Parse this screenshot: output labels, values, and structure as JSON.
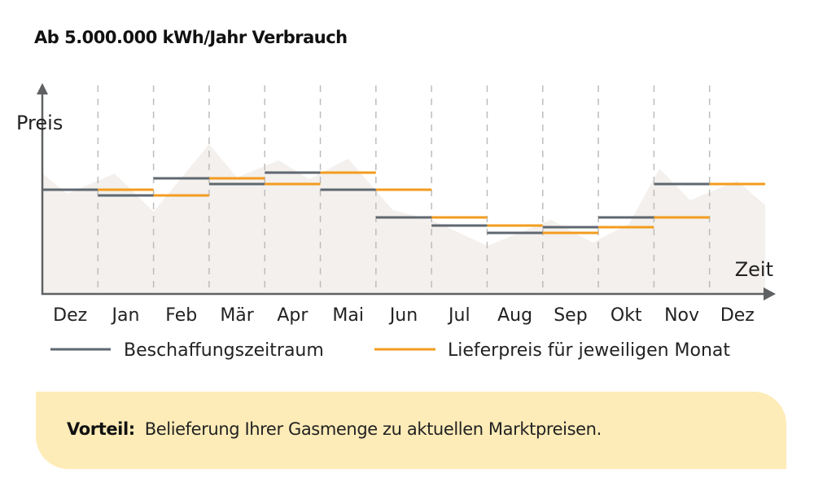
{
  "title": "Ab 5.000.000 kWh/Jahr Verbrauch",
  "chart_data": {
    "type": "line",
    "subtype": "step",
    "title": "Ab 5.000.000 kWh/Jahr Verbrauch",
    "ylabel": "Preis",
    "xlabel": "Zeit",
    "categories": [
      "Dez",
      "Jan",
      "Feb",
      "Mär",
      "Apr",
      "Mai",
      "Jun",
      "Jul",
      "Aug",
      "Sep",
      "Okt",
      "Nov",
      "Dez"
    ],
    "ylim": [
      0,
      95
    ],
    "grid": "vertical dashed",
    "legend_position": "bottom",
    "series": [
      {
        "name": "Beschaffungszeitraum",
        "color": "#5f6870",
        "values": [
          63.5,
          60,
          70.5,
          67,
          74,
          63.5,
          46.5,
          41.5,
          37,
          40.5,
          46.5,
          67,
          null
        ]
      },
      {
        "name": "Lieferpreis für jeweiligen Monat",
        "color": "#f39c1f",
        "values": [
          null,
          63.5,
          60,
          70.5,
          67,
          74,
          63.5,
          46.5,
          41.5,
          37,
          40.5,
          46.5,
          67
        ]
      }
    ],
    "background_area": {
      "color": "#f3f0ed",
      "points": [
        [
          0,
          73.5
        ],
        [
          0.45,
          61
        ],
        [
          1.3,
          73.5
        ],
        [
          2,
          50
        ],
        [
          3,
          91.5
        ],
        [
          3.5,
          71
        ],
        [
          4.25,
          81.5
        ],
        [
          4.8,
          70
        ],
        [
          5.5,
          82.5
        ],
        [
          6.3,
          51
        ],
        [
          7,
          45
        ],
        [
          8,
          29
        ],
        [
          9.15,
          45
        ],
        [
          9.9,
          31
        ],
        [
          10.55,
          42.5
        ],
        [
          11.1,
          76.5
        ],
        [
          11.65,
          57
        ],
        [
          12.5,
          69
        ],
        [
          13,
          54
        ]
      ]
    }
  },
  "legend": [
    {
      "label": "Beschaffungszeitraum",
      "color": "#5f6870"
    },
    {
      "label": "Lieferpreis für jeweiligen Monat",
      "color": "#f39c1f"
    }
  ],
  "callout": {
    "label": "Vorteil:",
    "text": "Belieferung Ihrer Gasmenge zu aktuellen Marktpreisen.",
    "color": "#fdecb8"
  }
}
